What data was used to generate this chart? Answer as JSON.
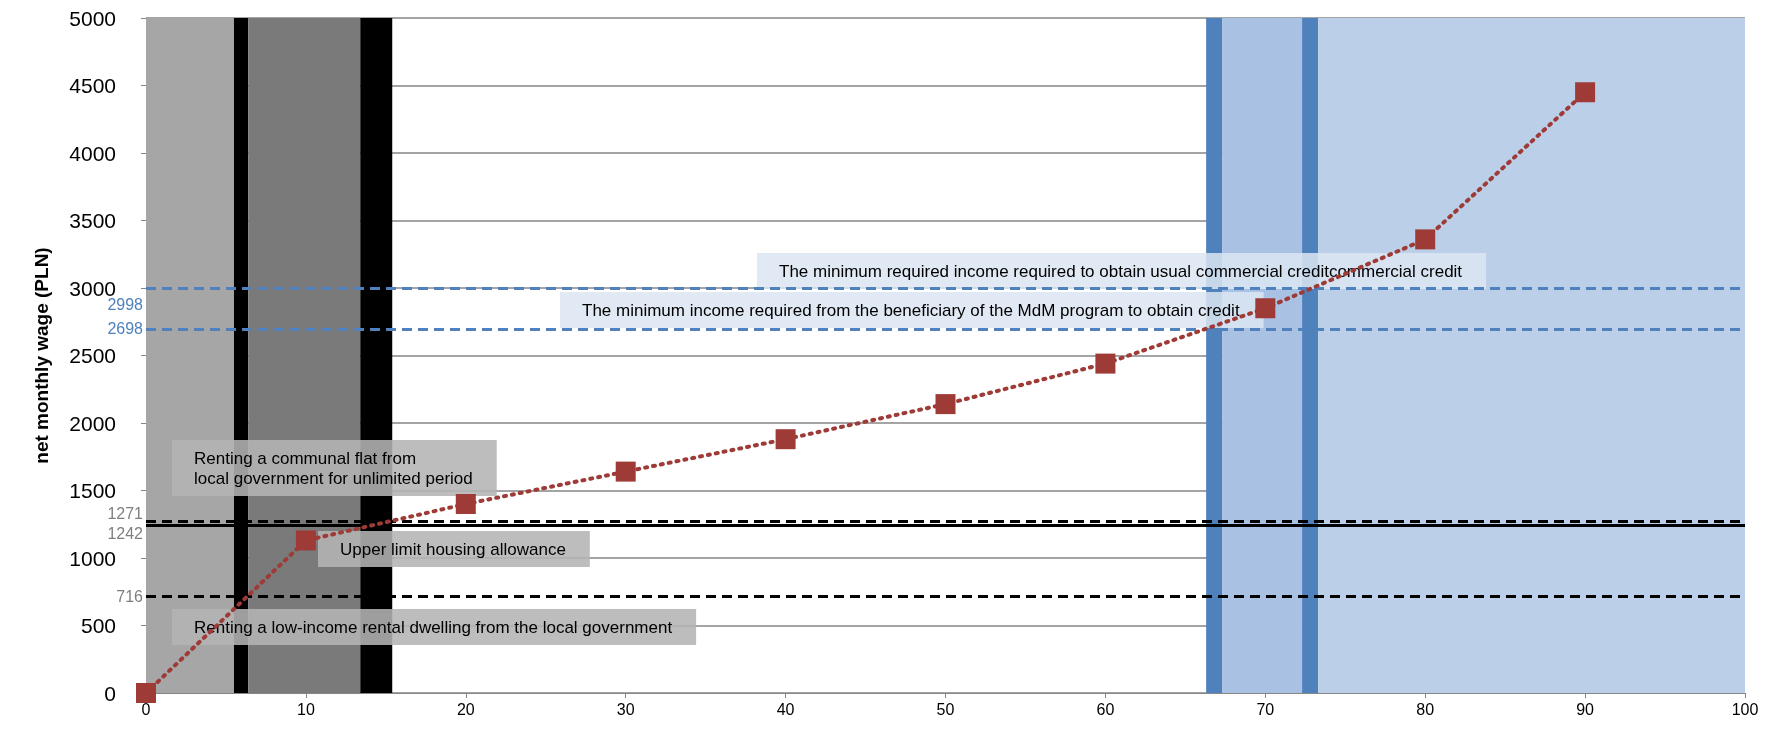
{
  "chart_data": {
    "type": "line",
    "ylabel": "net monthly wage (PLN)",
    "x": [
      0,
      10,
      20,
      30,
      40,
      50,
      60,
      70,
      80,
      90
    ],
    "series": [
      {
        "color": "#9e3b37",
        "values": [
          0,
          1130,
          1400,
          1640,
          1880,
          2140,
          2440,
          2850,
          3360,
          4450
        ]
      }
    ],
    "xlim": [
      0,
      100
    ],
    "xticks": [
      0,
      10,
      20,
      30,
      40,
      50,
      60,
      70,
      80,
      90,
      100
    ],
    "ylim": [
      0,
      5000
    ],
    "yticks": [
      0,
      500,
      1000,
      1500,
      2000,
      2500,
      3000,
      3500,
      4000,
      4500,
      5000
    ],
    "grid": "y",
    "marker": "square",
    "line_style": "dotted",
    "bands": [
      {
        "axis": "x",
        "from": 0,
        "to": 5.5,
        "color": "#a6a6a6"
      },
      {
        "axis": "x",
        "from": 5.5,
        "to": 6.4,
        "color": "#000000"
      },
      {
        "axis": "x",
        "from": 6.4,
        "to": 13.4,
        "color": "#7a7a7a"
      },
      {
        "axis": "x",
        "from": 13.4,
        "to": 15.4,
        "color": "#000000"
      },
      {
        "axis": "x",
        "from": 66.3,
        "to": 67.3,
        "color": "#4f81bd"
      },
      {
        "axis": "x",
        "from": 67.3,
        "to": 72.3,
        "color": "#a9c1e2"
      },
      {
        "axis": "x",
        "from": 72.3,
        "to": 73.3,
        "color": "#4f81bd"
      },
      {
        "axis": "x",
        "from": 73.3,
        "to": 100,
        "color": "#bccfe8"
      }
    ],
    "ref_lines": [
      {
        "axis": "y",
        "value": 2998,
        "label": "2998",
        "color": "#4f81bd",
        "line_style": "dashed"
      },
      {
        "axis": "y",
        "value": 2698,
        "label": "2698",
        "color": "#4f81bd",
        "line_style": "dashed"
      },
      {
        "axis": "y",
        "value": 1271,
        "label": "1271",
        "color": "#000000",
        "line_style": "dashed"
      },
      {
        "axis": "y",
        "value": 1242,
        "label": "1242",
        "color": "#000000",
        "line_style": "solid"
      },
      {
        "axis": "y",
        "value": 716,
        "label": "716",
        "color": "#000000",
        "line_style": "dashed"
      }
    ],
    "annotations": [
      "The minimum required income required to obtain usual commercial creditcommercial credit",
      "The minimum income required from the beneficiary of the MdM program to obtain credit",
      "Renting a communal flat from\nlocal government for unlimited period",
      "Upper limit housing allowance",
      "Renting a low-income rental dwelling from the local government"
    ]
  }
}
